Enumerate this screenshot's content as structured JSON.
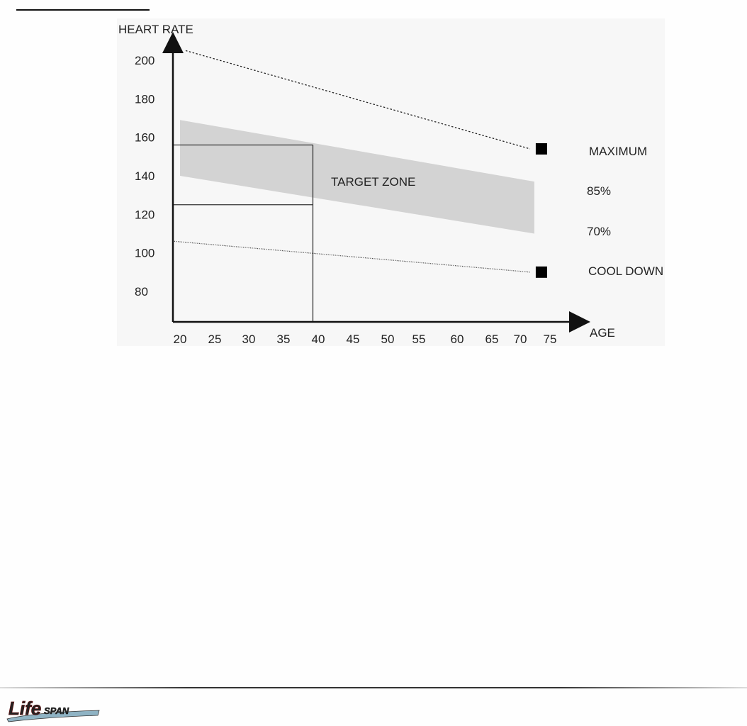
{
  "chart_data": {
    "type": "area",
    "title": "",
    "ylabel": "HEART RATE",
    "xlabel": "AGE",
    "x_ticks": [
      20,
      25,
      30,
      35,
      40,
      45,
      50,
      55,
      60,
      65,
      70,
      75
    ],
    "y_ticks": [
      80,
      100,
      120,
      140,
      160,
      180,
      200
    ],
    "xlim": [
      20,
      76
    ],
    "ylim": [
      60,
      210
    ],
    "grid": false,
    "series": [
      {
        "name": "MAXIMUM",
        "style": "dashed",
        "x": [
          20,
          76
        ],
        "y": [
          205,
          154
        ]
      },
      {
        "name": "COOL DOWN",
        "style": "dotted",
        "x": [
          20,
          76
        ],
        "y": [
          106,
          90
        ]
      }
    ],
    "band": {
      "name": "TARGET ZONE",
      "upper_label": "85%",
      "lower_label": "70%",
      "x": [
        20,
        76
      ],
      "upper": [
        169,
        137
      ],
      "lower": [
        140,
        110
      ],
      "color": "#d3d3d3"
    },
    "example_reference": {
      "age": 41,
      "upper": 156,
      "lower": 125
    }
  },
  "logo": {
    "text": "LifeSPAN"
  }
}
